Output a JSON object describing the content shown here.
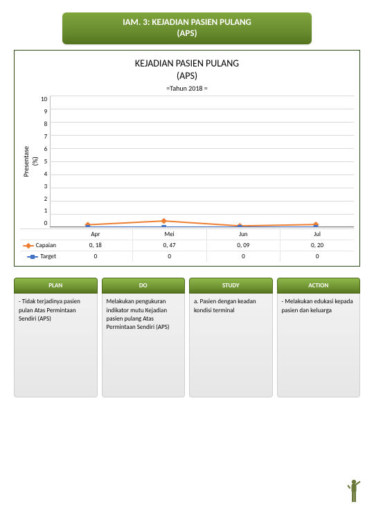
{
  "header": {
    "line1": "IAM. 3: KEJADIAN PASIEN PULANG",
    "line2": "(APS)"
  },
  "chart": {
    "type": "line",
    "title_line1": "KEJADIAN PASIEN PULANG",
    "title_line2": "(APS)",
    "subtitle": "=Tahun 2018 =",
    "ylabel": "Presentase\n(%)",
    "background_color": "#ffffff",
    "grid_color": "#d9d9d9",
    "axis_color": "#808080",
    "ylim": [
      0,
      10
    ],
    "ytick_step": 1,
    "yticks": [
      "10",
      "9",
      "8",
      "7",
      "6",
      "5",
      "4",
      "3",
      "2",
      "1",
      "0"
    ],
    "categories": [
      "Apr",
      "Mei",
      "Jun",
      "Jul"
    ],
    "series": [
      {
        "name": "Capaian",
        "color": "#ed7d31",
        "marker": "diamond",
        "values": [
          0.18,
          0.47,
          0.09,
          0.2
        ],
        "display": [
          "0, 18",
          "0, 47",
          "0, 09",
          "0, 20"
        ],
        "line_width": 2
      },
      {
        "name": "Target",
        "color": "#4472c4",
        "marker": "square",
        "values": [
          0,
          0,
          0,
          0
        ],
        "display": [
          "0",
          "0",
          "0",
          "0"
        ],
        "line_width": 2
      }
    ],
    "label_fontsize": 9,
    "title_fontsize": 14
  },
  "pdsa": {
    "columns": [
      {
        "head": "PLAN",
        "body": "- Tidak terjadinya pasien pulan Atas Permintaan Sendiri (APS)"
      },
      {
        "head": "DO",
        "body": "Melakukan pengukuran indikator mutu Kejadian pasien pulang Atas Permintaan Sendiri (APS)"
      },
      {
        "head": "STUDY",
        "body": "a. Pasien dengan keadan kondisi terminal"
      },
      {
        "head": "ACTION",
        "body": "- Melakukan edukasi kepada pasien dan keluarga"
      }
    ],
    "head_bg": "#6b8e30",
    "head_text_color": "#ffffff",
    "body_bg": "#ededed",
    "body_text_color": "#000000"
  },
  "figure_icon": {
    "name": "person-pointing-icon",
    "color": "#6b7a3a"
  }
}
